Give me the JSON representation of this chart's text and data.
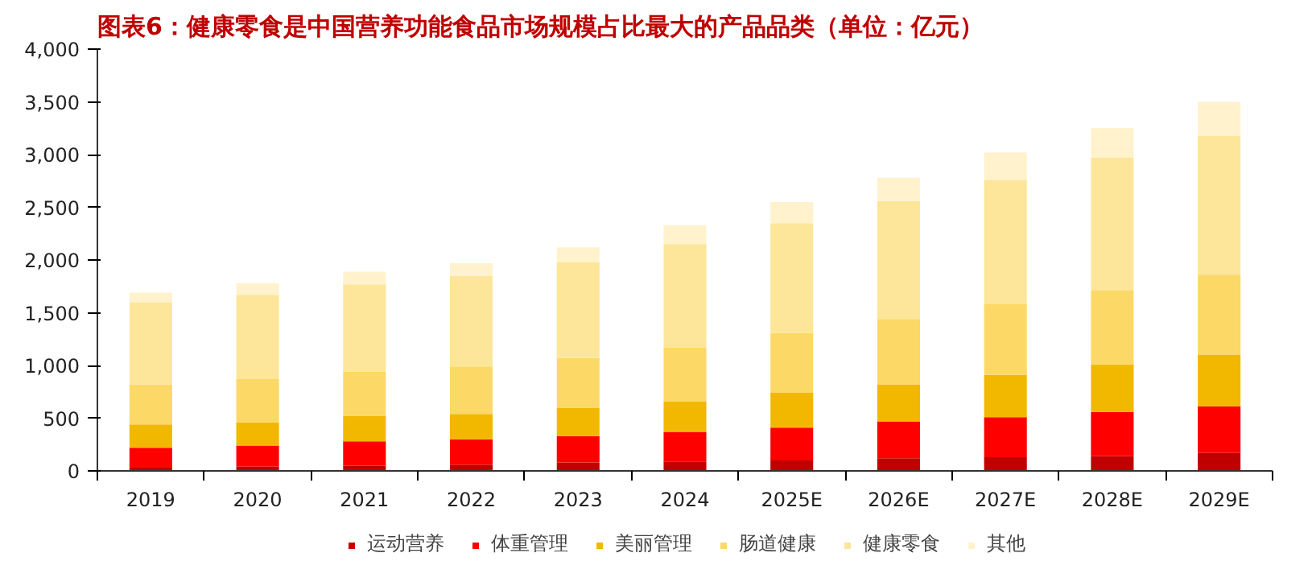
{
  "chart_data": {
    "type": "bar",
    "stacked": true,
    "title": "图表6：健康零食是中国营养功能食品市场规模占比最大的产品品类（单位：亿元）",
    "categories": [
      "2019",
      "2020",
      "2021",
      "2022",
      "2023",
      "2024",
      "2025E",
      "2026E",
      "2027E",
      "2028E",
      "2029E"
    ],
    "ylim": [
      0,
      4000
    ],
    "yticks": [
      0,
      {
        "value": 500,
        "label": "500"
      },
      {
        "value": 1000,
        "label": "1,000"
      },
      {
        "value": 1500,
        "label": "1,500"
      },
      {
        "value": 2000,
        "label": "2,000"
      },
      {
        "value": 2500,
        "label": "2,500"
      },
      {
        "value": 3000,
        "label": "3,000"
      },
      {
        "value": 3500,
        "label": "3,500"
      },
      {
        "value": 4000,
        "label": "4,000"
      }
    ],
    "grid": false,
    "legend": "bottom",
    "series": [
      {
        "name": "运动营养",
        "color": "#c00000",
        "values": [
          30,
          40,
          50,
          60,
          80,
          90,
          100,
          120,
          130,
          140,
          170
        ]
      },
      {
        "name": "体重管理",
        "color": "#ff0000",
        "values": [
          190,
          200,
          230,
          240,
          250,
          280,
          310,
          350,
          380,
          420,
          440
        ]
      },
      {
        "name": "美丽管理",
        "color": "#f2b800",
        "values": [
          220,
          220,
          240,
          240,
          270,
          290,
          330,
          350,
          400,
          450,
          490
        ]
      },
      {
        "name": "肠道健康",
        "color": "#fcd966",
        "values": [
          380,
          410,
          420,
          450,
          470,
          510,
          570,
          620,
          670,
          700,
          760
        ]
      },
      {
        "name": "健康零食",
        "color": "#fde699",
        "values": [
          780,
          800,
          830,
          860,
          910,
          980,
          1040,
          1120,
          1180,
          1260,
          1320
        ]
      },
      {
        "name": "其他",
        "color": "#fff2cc",
        "values": [
          90,
          110,
          120,
          120,
          140,
          180,
          200,
          220,
          260,
          280,
          320
        ]
      }
    ]
  }
}
